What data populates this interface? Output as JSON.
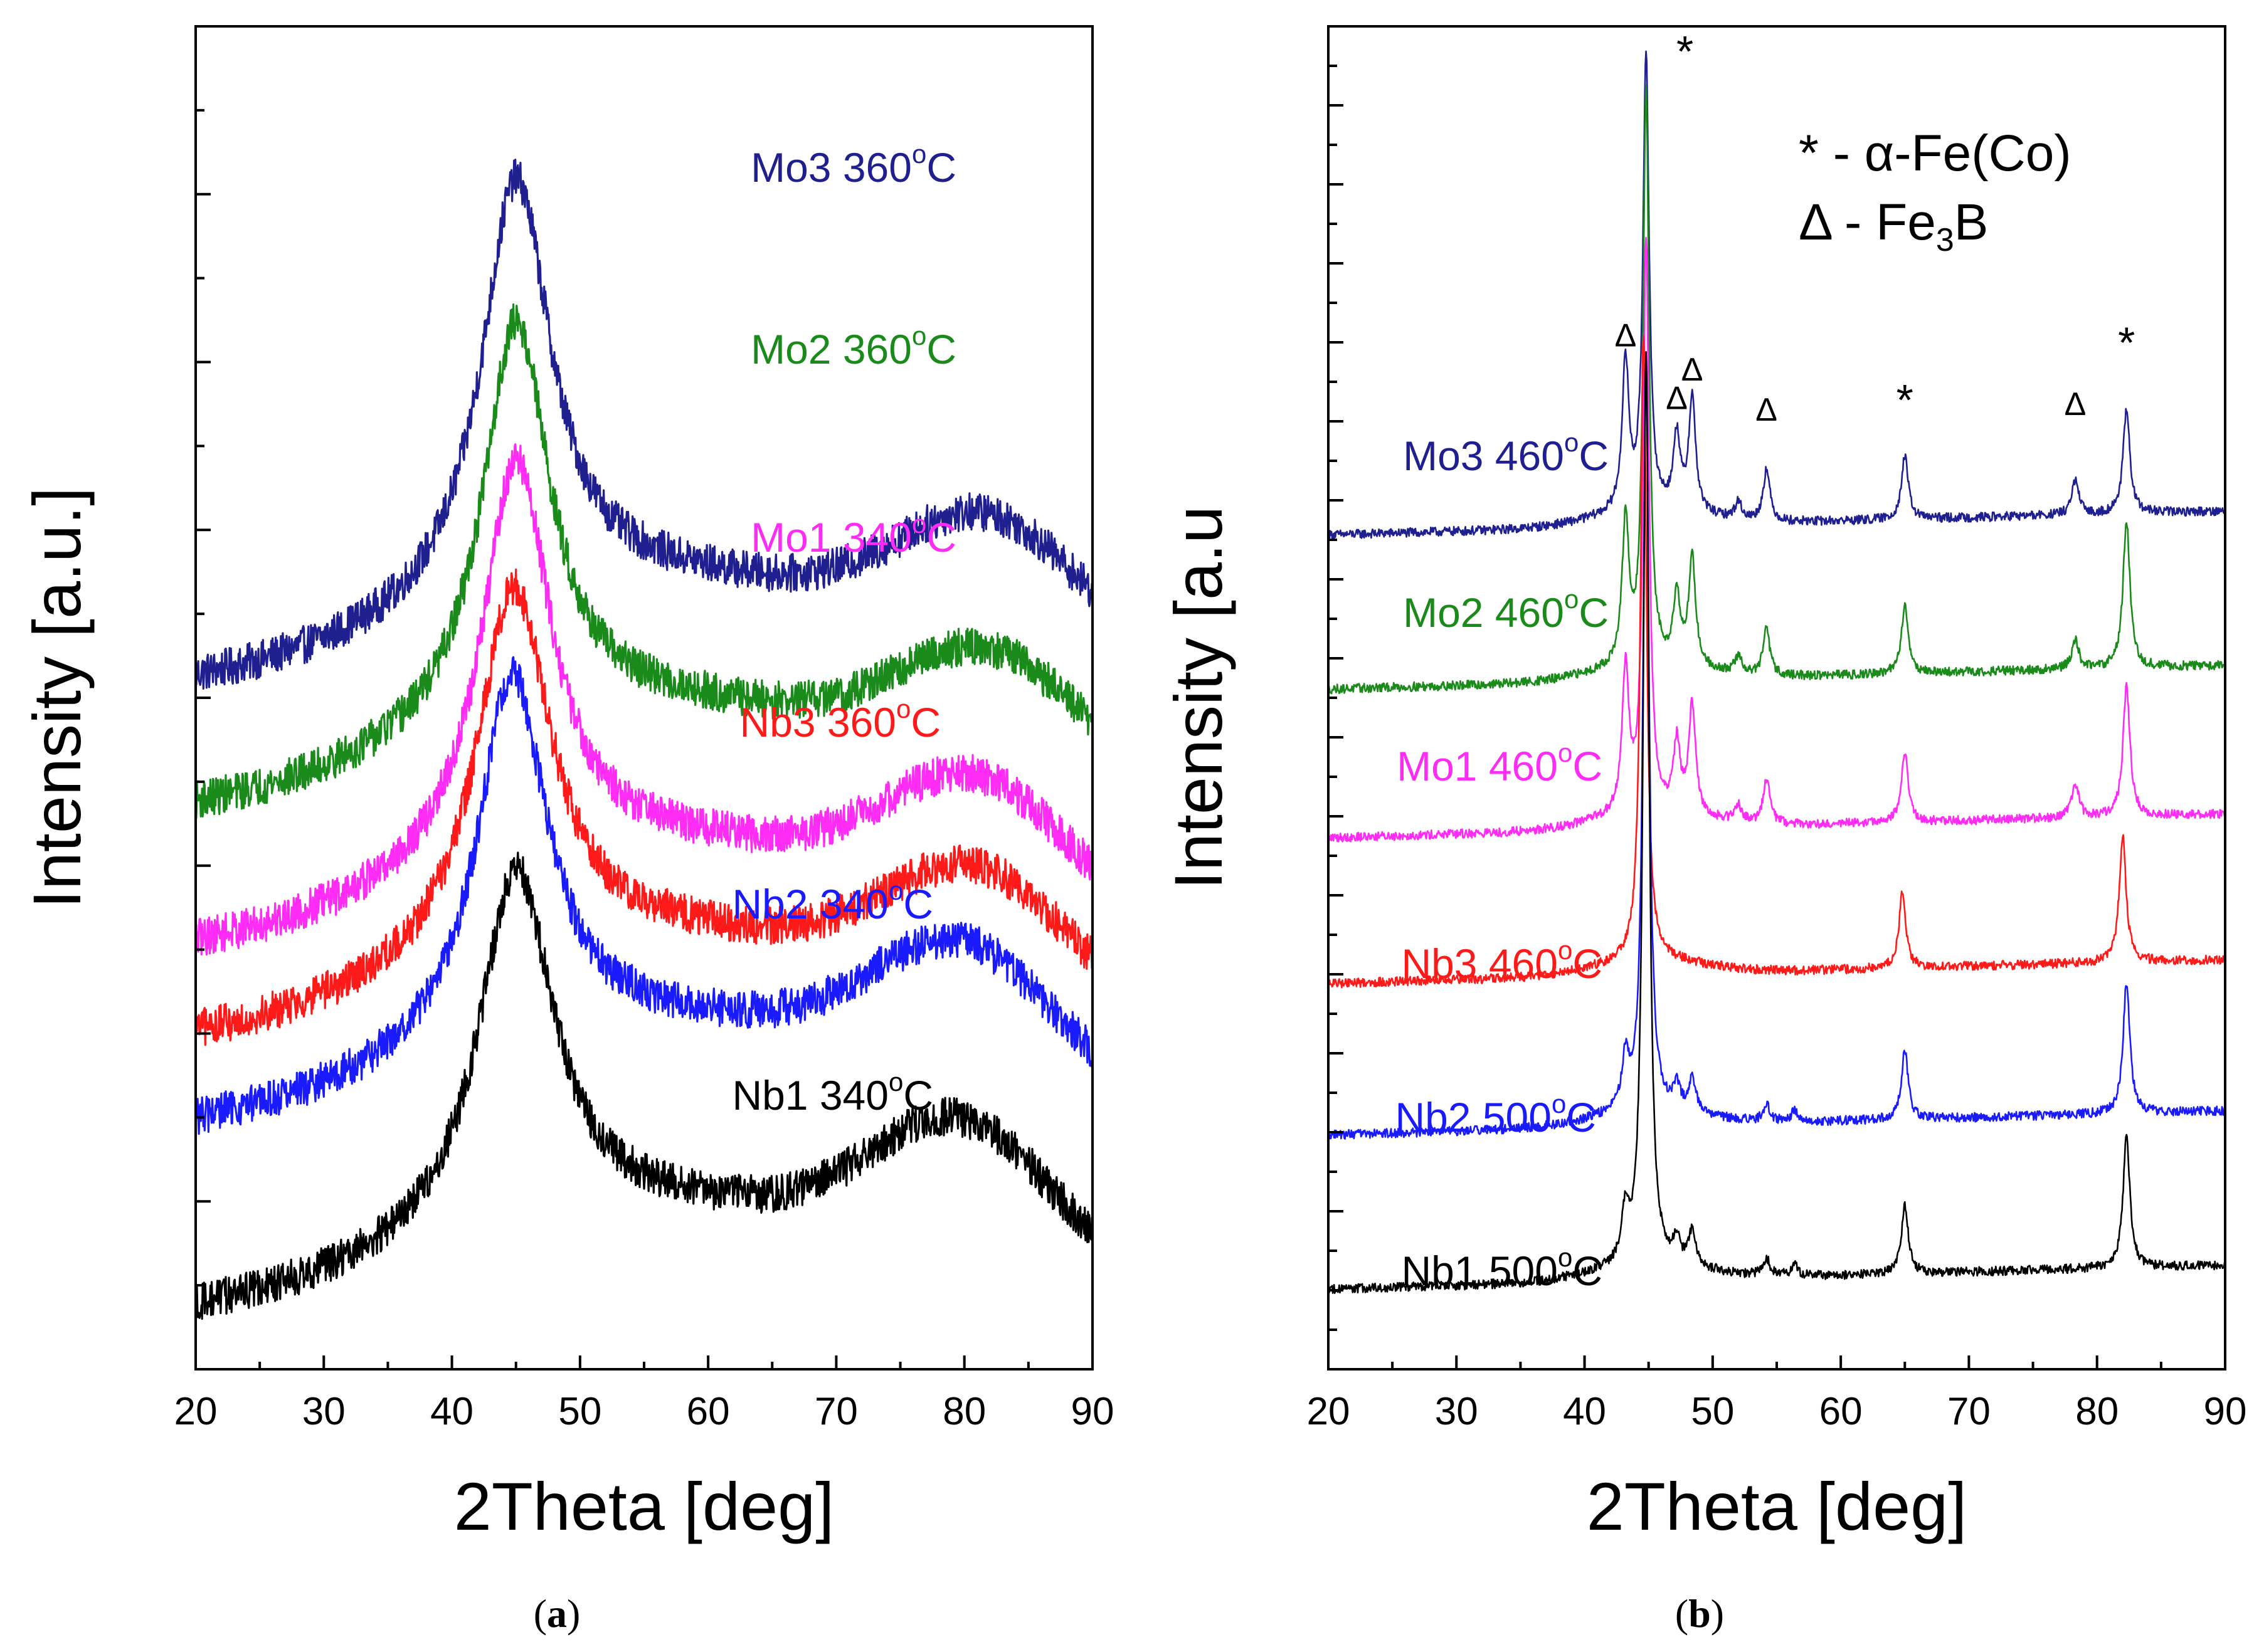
{
  "chart_data": [
    {
      "type": "line",
      "panel_label": "(a)",
      "panel_letter": "a",
      "xlabel": "2Theta [deg]",
      "ylabel": "Intensity [a.u.]",
      "xlim": [
        20,
        90
      ],
      "x_ticks": [
        "20",
        "30",
        "40",
        "50",
        "60",
        "70",
        "80",
        "90"
      ],
      "y_ticks_labels": "none",
      "series": [
        {
          "name": "Mo3 360°C",
          "alloy": "Mo3",
          "temperature": "360",
          "unit": "°C",
          "color": "#1f1f8f",
          "baseline": 6.45,
          "amorphous_peak": {
            "center": 45.0,
            "height": 4.9,
            "width": 3.3
          },
          "halo": {
            "center": 82,
            "height": 1.4,
            "width": 10
          },
          "noise": 0.22
        },
        {
          "name": "Mo2 360°C",
          "alloy": "Mo2",
          "temperature": "360",
          "unit": "°C",
          "color": "#1a8a1a",
          "baseline": 5.0,
          "amorphous_peak": {
            "center": 45.0,
            "height": 4.7,
            "width": 3.2
          },
          "halo": {
            "center": 82,
            "height": 1.3,
            "width": 10
          },
          "noise": 0.22
        },
        {
          "name": "Mo1 340°C",
          "alloy": "Mo1",
          "temperature": "340",
          "unit": "°C",
          "color": "#ff2cf5",
          "baseline": 3.4,
          "amorphous_peak": {
            "center": 45.0,
            "height": 4.7,
            "width": 3.3
          },
          "halo": {
            "center": 81,
            "height": 1.4,
            "width": 10
          },
          "noise": 0.22
        },
        {
          "name": "Nb3 360°C",
          "alloy": "Nb3",
          "temperature": "360",
          "unit": "°C",
          "color": "#ff1a1a",
          "baseline": 2.35,
          "amorphous_peak": {
            "center": 44.8,
            "height": 4.3,
            "width": 3.5
          },
          "halo": {
            "center": 81,
            "height": 1.4,
            "width": 10
          },
          "noise": 0.22
        },
        {
          "name": "Nb2 340°C",
          "alloy": "Nb2",
          "temperature": "340",
          "unit": "°C",
          "color": "#1a1aff",
          "baseline": 1.35,
          "amorphous_peak": {
            "center": 44.7,
            "height": 4.3,
            "width": 3.3
          },
          "halo": {
            "center": 80,
            "height": 1.5,
            "width": 10
          },
          "noise": 0.22
        },
        {
          "name": "Nb1 340°C",
          "alloy": "Nb1",
          "temperature": "340",
          "unit": "°C",
          "color": "#000000",
          "baseline": -0.8,
          "amorphous_peak": {
            "center": 45.0,
            "height": 4.2,
            "width": 3.5
          },
          "halo": {
            "center": 80,
            "height": 1.6,
            "width": 10
          },
          "noise": 0.22
        }
      ]
    },
    {
      "type": "line",
      "panel_label": "(b)",
      "panel_letter": "b",
      "xlabel": "2Theta [deg]",
      "ylabel": "Intensity [a.u",
      "xlim": [
        20,
        90
      ],
      "x_ticks": [
        "20",
        "30",
        "40",
        "50",
        "60",
        "70",
        "80",
        "90"
      ],
      "y_ticks_labels": "none",
      "legend_lines": [
        {
          "symbol": "*",
          "text": " - α-Fe(Co)",
          "kind": "alpha"
        },
        {
          "symbol": "Δ",
          "text": " - Fe",
          "subscript": "3",
          "suffix": "B",
          "kind": "fe3b"
        }
      ],
      "peak_markers": [
        {
          "symbol": "*",
          "x": 44.9,
          "y": 21.8
        },
        {
          "symbol": "Δ",
          "x": 43.2,
          "y": 16.9
        },
        {
          "symbol": "Δ",
          "x": 47.2,
          "y": 15.8
        },
        {
          "symbol": "Δ",
          "x": 48.4,
          "y": 16.3
        },
        {
          "symbol": "Δ",
          "x": 54.2,
          "y": 15.6
        },
        {
          "symbol": "*",
          "x": 65.0,
          "y": 15.7
        },
        {
          "symbol": "Δ",
          "x": 78.3,
          "y": 15.7
        },
        {
          "symbol": "*",
          "x": 82.3,
          "y": 16.7
        }
      ],
      "series": [
        {
          "name": "Mo3 460°C",
          "alloy": "Mo3",
          "temperature": "460",
          "unit": "°C",
          "color": "#1f1f8f",
          "baseline": 13.6,
          "slope": 0.006,
          "peaks": [
            {
              "x": 43.2,
              "h": 2.6
            },
            {
              "x": 44.8,
              "h": 8.0
            },
            {
              "x": 47.2,
              "h": 1.3
            },
            {
              "x": 48.4,
              "h": 2.0
            },
            {
              "x": 52.0,
              "h": 0.3
            },
            {
              "x": 54.2,
              "h": 0.9
            },
            {
              "x": 65.0,
              "h": 1.1
            },
            {
              "x": 78.3,
              "h": 0.6
            },
            {
              "x": 82.3,
              "h": 1.8
            }
          ]
        },
        {
          "name": "Mo2 460°C",
          "alloy": "Mo2",
          "temperature": "460",
          "unit": "°C",
          "color": "#1a8a1a",
          "baseline": 10.9,
          "slope": 0.006,
          "peaks": [
            {
              "x": 43.2,
              "h": 2.5
            },
            {
              "x": 44.8,
              "h": 10.0
            },
            {
              "x": 47.2,
              "h": 1.2
            },
            {
              "x": 48.4,
              "h": 1.9
            },
            {
              "x": 52.0,
              "h": 0.3
            },
            {
              "x": 54.2,
              "h": 0.8
            },
            {
              "x": 65.0,
              "h": 1.2
            },
            {
              "x": 78.3,
              "h": 0.5
            },
            {
              "x": 82.3,
              "h": 2.6
            }
          ]
        },
        {
          "name": "Mo1 460°C",
          "alloy": "Mo1",
          "temperature": "460",
          "unit": "°C",
          "color": "#ff2cf5",
          "baseline": 8.3,
          "slope": 0.006,
          "peaks": [
            {
              "x": 43.2,
              "h": 2.5
            },
            {
              "x": 44.8,
              "h": 10.0
            },
            {
              "x": 47.2,
              "h": 1.2
            },
            {
              "x": 48.4,
              "h": 1.9
            },
            {
              "x": 52.0,
              "h": 0.3
            },
            {
              "x": 54.2,
              "h": 0.8
            },
            {
              "x": 65.0,
              "h": 1.2
            },
            {
              "x": 78.3,
              "h": 0.6
            },
            {
              "x": 82.3,
              "h": 2.3
            }
          ]
        },
        {
          "name": "Nb3 460°C",
          "alloy": "Nb3",
          "temperature": "460",
          "unit": "°C",
          "color": "#ff1a1a",
          "baseline": 5.75,
          "slope": 0.006,
          "peaks": [
            {
              "x": 44.6,
              "h": 11.0
            },
            {
              "x": 64.8,
              "h": 1.3
            },
            {
              "x": 82.0,
              "h": 2.2
            }
          ]
        },
        {
          "name": "Nb2 500°C",
          "alloy": "Nb2",
          "temperature": "500",
          "unit": "°C",
          "color": "#1a1aff",
          "baseline": 3.1,
          "slope": 0.006,
          "peaks": [
            {
              "x": 43.2,
              "h": 0.9
            },
            {
              "x": 44.8,
              "h": 13.0
            },
            {
              "x": 47.2,
              "h": 0.4
            },
            {
              "x": 48.4,
              "h": 0.6
            },
            {
              "x": 54.2,
              "h": 0.3
            },
            {
              "x": 56.4,
              "h": 0.2
            },
            {
              "x": 65.0,
              "h": 1.2
            },
            {
              "x": 82.3,
              "h": 2.3
            }
          ]
        },
        {
          "name": "Nb1 500°C",
          "alloy": "Nb1",
          "temperature": "500",
          "unit": "°C",
          "color": "#000000",
          "baseline": 0.4,
          "slope": 0.006,
          "peaks": [
            {
              "x": 43.2,
              "h": 0.9
            },
            {
              "x": 44.8,
              "h": 16.0
            },
            {
              "x": 47.2,
              "h": 0.4
            },
            {
              "x": 48.4,
              "h": 0.6
            },
            {
              "x": 54.2,
              "h": 0.3
            },
            {
              "x": 56.4,
              "h": 0.2
            },
            {
              "x": 65.0,
              "h": 1.2
            },
            {
              "x": 82.3,
              "h": 2.3
            }
          ]
        }
      ]
    }
  ]
}
